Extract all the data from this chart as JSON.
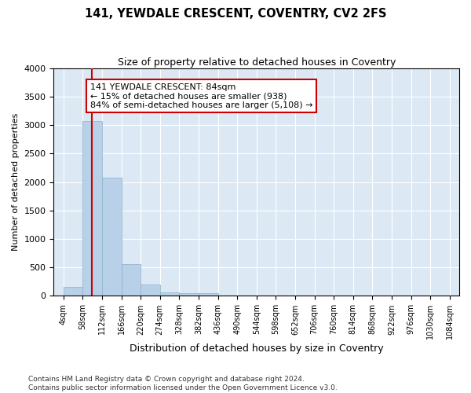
{
  "title1": "141, YEWDALE CRESCENT, COVENTRY, CV2 2FS",
  "title2": "Size of property relative to detached houses in Coventry",
  "xlabel": "Distribution of detached houses by size in Coventry",
  "ylabel": "Number of detached properties",
  "bar_color": "#b8d0e8",
  "bar_edge_color": "#8ab0cc",
  "background_color": "#dce9f5",
  "grid_color": "#ffffff",
  "bin_edges": [
    4,
    58,
    112,
    166,
    220,
    274,
    328,
    382,
    436,
    490,
    544,
    598,
    652,
    706,
    760,
    814,
    868,
    922,
    976,
    1030,
    1084
  ],
  "bar_heights": [
    155,
    3075,
    2075,
    565,
    205,
    65,
    50,
    50,
    0,
    0,
    0,
    0,
    0,
    0,
    0,
    0,
    0,
    0,
    0,
    0
  ],
  "property_size": 84,
  "property_line_color": "#cc0000",
  "annotation_line1": "141 YEWDALE CRESCENT: 84sqm",
  "annotation_line2": "← 15% of detached houses are smaller (938)",
  "annotation_line3": "84% of semi-detached houses are larger (5,108) →",
  "annotation_box_color": "#cc0000",
  "ylim": [
    0,
    4000
  ],
  "yticks": [
    0,
    500,
    1000,
    1500,
    2000,
    2500,
    3000,
    3500,
    4000
  ],
  "footer_line1": "Contains HM Land Registry data © Crown copyright and database right 2024.",
  "footer_line2": "Contains public sector information licensed under the Open Government Licence v3.0."
}
